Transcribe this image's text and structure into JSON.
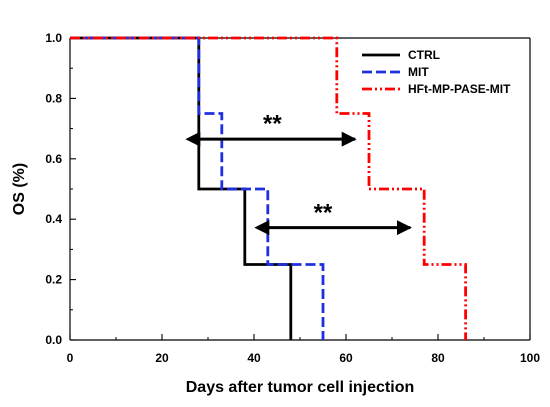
{
  "chart_data": {
    "type": "line",
    "xlabel": "Days after tumor cell injection",
    "ylabel": "OS (%)",
    "xlim": [
      0,
      100
    ],
    "ylim": [
      0.0,
      1.0
    ],
    "x_ticks": [
      0,
      20,
      40,
      60,
      80,
      100
    ],
    "y_ticks": [
      0.0,
      0.2,
      0.4,
      0.6,
      0.8,
      1.0
    ],
    "x_tick_labels": [
      "0",
      "20",
      "40",
      "60",
      "80",
      "100"
    ],
    "y_tick_labels": [
      "0.0",
      "0.2",
      "0.4",
      "0.6",
      "0.8",
      "1.0"
    ],
    "grid": false,
    "legend_position": "top-right",
    "series": [
      {
        "name": "CTRL",
        "color": "#000000",
        "line_style": "solid",
        "steps": [
          [
            0,
            1.0
          ],
          [
            28,
            1.0
          ],
          [
            28,
            0.5
          ],
          [
            38,
            0.5
          ],
          [
            38,
            0.25
          ],
          [
            48,
            0.25
          ],
          [
            48,
            0.0
          ]
        ]
      },
      {
        "name": "MIT",
        "color": "#1f2fe0",
        "line_style": "dashed",
        "steps": [
          [
            0,
            1.0
          ],
          [
            28,
            1.0
          ],
          [
            28,
            0.75
          ],
          [
            33,
            0.75
          ],
          [
            33,
            0.5
          ],
          [
            43,
            0.5
          ],
          [
            43,
            0.25
          ],
          [
            55,
            0.25
          ],
          [
            55,
            0.0
          ]
        ]
      },
      {
        "name": "HFt-MP-PASE-MIT",
        "color": "#ff0000",
        "line_style": "dash-dot-dot",
        "steps": [
          [
            0,
            1.0
          ],
          [
            58,
            1.0
          ],
          [
            58,
            0.75
          ],
          [
            65,
            0.75
          ],
          [
            65,
            0.5
          ],
          [
            77,
            0.5
          ],
          [
            77,
            0.25
          ],
          [
            86,
            0.25
          ],
          [
            86,
            0.0
          ]
        ]
      }
    ],
    "annotations": [
      {
        "text": "**",
        "arrow": {
          "x_start": 28,
          "x_end": 62,
          "y": 0.665
        },
        "label_x": 44,
        "label_y": 0.69
      },
      {
        "text": "**",
        "arrow": {
          "x_start": 43,
          "x_end": 74,
          "y": 0.372
        },
        "label_x": 55,
        "label_y": 0.395
      }
    ]
  }
}
